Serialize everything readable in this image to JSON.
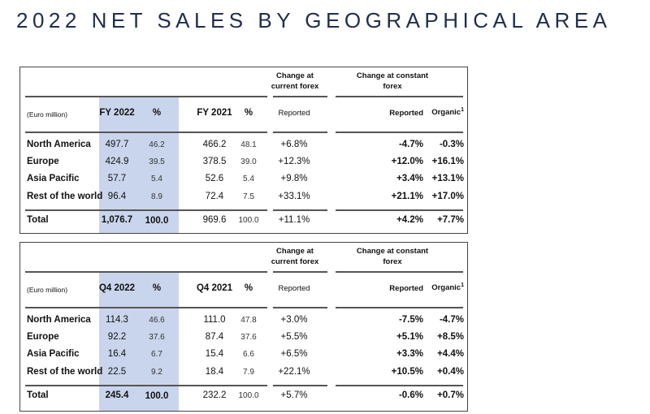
{
  "title": "2022 NET SALES BY GEOGRAPHICAL AREA",
  "tables": [
    {
      "unit_label": "(Euro million)",
      "group_current": "Change at current forex",
      "group_constant": "Change at constant forex",
      "columns": [
        "FY 2022",
        "%",
        "FY 2021",
        "%",
        "Reported",
        "Reported",
        "Organic"
      ],
      "footnote_mark": "1",
      "rows": [
        {
          "label": "North America",
          "cur": "497.7",
          "cur_pct": "46.2",
          "prev": "466.2",
          "prev_pct": "48.1",
          "chg_cur": "+6.8%",
          "chg_rep": "-4.7%",
          "chg_org": "-0.3%"
        },
        {
          "label": "Europe",
          "cur": "424.9",
          "cur_pct": "39.5",
          "prev": "378.5",
          "prev_pct": "39.0",
          "chg_cur": "+12.3%",
          "chg_rep": "+12.0%",
          "chg_org": "+16.1%"
        },
        {
          "label": "Asia Pacific",
          "cur": "57.7",
          "cur_pct": "5.4",
          "prev": "52.6",
          "prev_pct": "5.4",
          "chg_cur": "+9.8%",
          "chg_rep": "+3.4%",
          "chg_org": "+13.1%"
        },
        {
          "label": "Rest of the world",
          "cur": "96.4",
          "cur_pct": "8.9",
          "prev": "72.4",
          "prev_pct": "7.5",
          "chg_cur": "+33.1%",
          "chg_rep": "+21.1%",
          "chg_org": "+17.0%"
        }
      ],
      "total": {
        "label": "Total",
        "cur": "1,076.7",
        "cur_pct": "100.0",
        "prev": "969.6",
        "prev_pct": "100.0",
        "chg_cur": "+11.1%",
        "chg_rep": "+4.2%",
        "chg_org": "+7.7%"
      }
    },
    {
      "unit_label": "(Euro million)",
      "group_current": "Change at current forex",
      "group_constant": "Change at constant forex",
      "columns": [
        "Q4 2022",
        "%",
        "Q4 2021",
        "%",
        "Reported",
        "Reported",
        "Organic"
      ],
      "footnote_mark": "1",
      "rows": [
        {
          "label": "North America",
          "cur": "114.3",
          "cur_pct": "46.6",
          "prev": "111.0",
          "prev_pct": "47.8",
          "chg_cur": "+3.0%",
          "chg_rep": "-7.5%",
          "chg_org": "-4.7%"
        },
        {
          "label": "Europe",
          "cur": "92.2",
          "cur_pct": "37.6",
          "prev": "87.4",
          "prev_pct": "37.6",
          "chg_cur": "+5.5%",
          "chg_rep": "+5.1%",
          "chg_org": "+8.5%"
        },
        {
          "label": "Asia Pacific",
          "cur": "16.4",
          "cur_pct": "6.7",
          "prev": "15.4",
          "prev_pct": "6.6",
          "chg_cur": "+6.5%",
          "chg_rep": "+3.3%",
          "chg_org": "+4.4%"
        },
        {
          "label": "Rest of the world",
          "cur": "22.5",
          "cur_pct": "9.2",
          "prev": "18.4",
          "prev_pct": "7.9",
          "chg_cur": "+22.1%",
          "chg_rep": "+10.5%",
          "chg_org": "+0.4%"
        }
      ],
      "total": {
        "label": "Total",
        "cur": "245.4",
        "cur_pct": "100.0",
        "prev": "232.2",
        "prev_pct": "100.0",
        "chg_cur": "+5.7%",
        "chg_rep": "-0.6%",
        "chg_org": "+0.7%"
      }
    }
  ]
}
